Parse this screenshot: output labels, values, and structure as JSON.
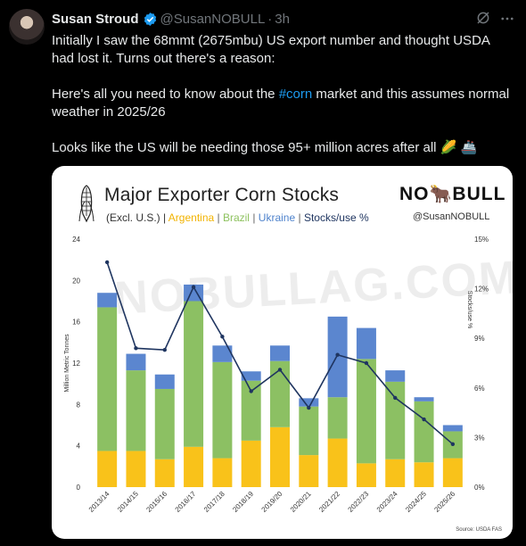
{
  "tweet": {
    "author_name": "Susan Stroud",
    "handle": "@SusanNOBULL",
    "dot": "·",
    "time": "3h",
    "para1": "Initially I saw the 68mmt (2675mbu) US export number and thought USDA had lost it. Turns out there's a reason:",
    "para2_before": "Here's all you need to know about the ",
    "hashtag": "#corn",
    "para2_after": " market and this assumes normal weather in 2025/26",
    "para3": "Looks like the US will be needing those 95+ million acres after all",
    "emoji1": "🌽",
    "emoji2": "🚢"
  },
  "card": {
    "logo_text_left": "NO",
    "logo_text_right": "BULL",
    "logo_bull": "🐂",
    "handle": "@SusanNOBULL",
    "watermark": "NOBULLAG.COM",
    "subtitle": {
      "open": "(Excl. U.S.) | ",
      "argentina": "Argentina",
      "sep1": " | ",
      "brazil": "Brazil",
      "sep2": " | ",
      "ukraine": "Ukraine",
      "sep3": " | ",
      "stocks": "Stocks/use %"
    },
    "source": "Source: USDA FAS"
  },
  "icons": {
    "verified": "verified-badge-icon",
    "grok": "grok-icon",
    "more": "more-dots-icon",
    "corn": "corn-cob-icon"
  },
  "colors": {
    "argentina": "#f9c21a",
    "brazil": "#8cc063",
    "ukraine": "#5b86cf",
    "line": "#1f3560",
    "hashtag": "#1d9bf0"
  },
  "chart_data": {
    "type": "bar",
    "title": "Major Exporter Corn Stocks",
    "categories": [
      "2013/14",
      "2014/15",
      "2015/16",
      "2016/17",
      "2017/18",
      "2018/19",
      "2019/20",
      "2020/21",
      "2021/22",
      "2022/23",
      "2023/24",
      "2024/25",
      "2025/26"
    ],
    "series": [
      {
        "name": "Argentina",
        "values": [
          3.5,
          3.5,
          2.7,
          3.9,
          2.8,
          4.5,
          5.8,
          3.1,
          4.7,
          2.3,
          2.7,
          2.4,
          2.8
        ]
      },
      {
        "name": "Brazil",
        "values": [
          13.9,
          7.8,
          6.8,
          14.1,
          9.3,
          5.8,
          6.4,
          4.7,
          4.0,
          10.1,
          7.5,
          5.9,
          2.6
        ]
      },
      {
        "name": "Ukraine",
        "values": [
          1.4,
          1.6,
          1.4,
          1.6,
          1.6,
          0.9,
          1.5,
          0.8,
          7.8,
          3.0,
          1.1,
          0.4,
          0.6
        ]
      },
      {
        "name": "Stocks/use %",
        "axis": "right",
        "values": [
          13.6,
          8.4,
          8.3,
          12.1,
          9.1,
          5.8,
          7.1,
          4.8,
          8.0,
          7.5,
          5.4,
          4.1,
          2.6
        ]
      }
    ],
    "ylabel": "Million Metric Tonnes",
    "ylim": [
      0,
      24
    ],
    "yticks": [
      "0",
      "4",
      "8",
      "12",
      "16",
      "20",
      "24"
    ],
    "y2label": "Stocks/use %",
    "y2lim": [
      0,
      15
    ],
    "y2ticks": [
      "0%",
      "3%",
      "6%",
      "9%",
      "12%",
      "15%"
    ],
    "stacked": true,
    "grid": false,
    "legend": "subtitle"
  }
}
